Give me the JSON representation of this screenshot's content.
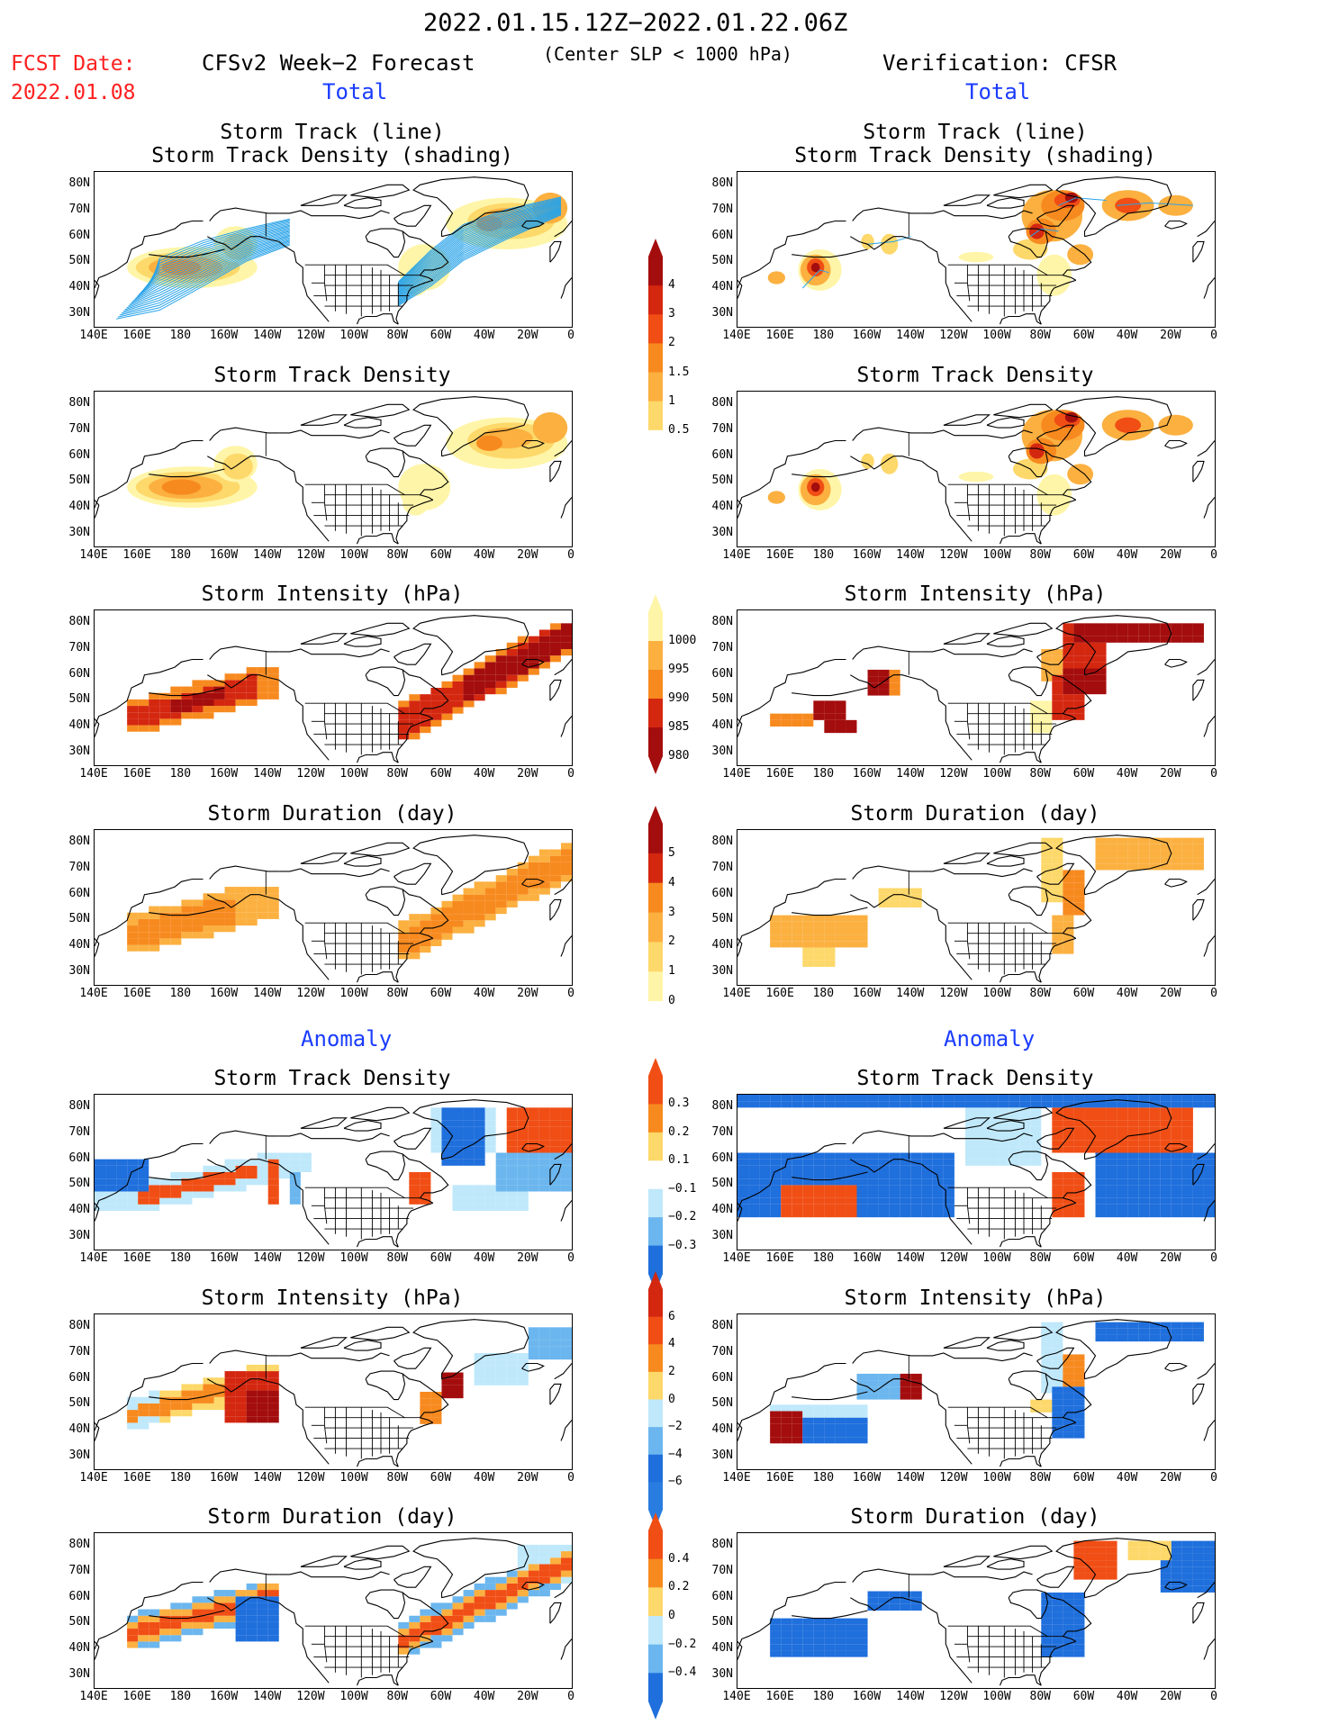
{
  "header": {
    "title": "2022.01.15.12Z−2022.01.22.06Z",
    "subtitle": "(Center SLP < 1000 hPa)",
    "fcst_label": "FCST Date:",
    "fcst_date": "2022.01.08",
    "left_title": "CFSv2 Week−2 Forecast",
    "right_title": "Verification: CFSR"
  },
  "sections": {
    "total": "Total",
    "anomaly": "Anomaly"
  },
  "panel_titles": {
    "track_line": "Storm Track (line)",
    "track_shading": "Storm Track Density (shading)",
    "density": "Storm Track Density",
    "intensity": "Storm Intensity (hPa)",
    "duration": "Storm Duration (day)"
  },
  "axes": {
    "lat": [
      "80N",
      "70N",
      "60N",
      "50N",
      "40N",
      "30N"
    ],
    "lon": [
      "140E",
      "160E",
      "180",
      "160W",
      "140W",
      "120W",
      "100W",
      "80W",
      "60W",
      "40W",
      "20W",
      "0"
    ]
  },
  "colorbars": {
    "total_density": [
      "4",
      "3",
      "2",
      "1.5",
      "1",
      "0.5"
    ],
    "total_intensity": [
      "1000",
      "995",
      "990",
      "985",
      "980"
    ],
    "total_duration": [
      "5",
      "4",
      "3",
      "2",
      "1",
      "0"
    ],
    "anom_density": [
      "0.3",
      "0.2",
      "0.1",
      "−0.1",
      "−0.2",
      "−0.3"
    ],
    "anom_intensity": [
      "6",
      "4",
      "2",
      "0",
      "−2",
      "−4",
      "−6"
    ],
    "anom_duration": [
      "0.4",
      "0.2",
      "0",
      "−0.2",
      "−0.4"
    ]
  },
  "colors": {
    "yellow_light": "#fff5a8",
    "yellow": "#fdd86a",
    "orange_light": "#fbb040",
    "orange": "#f78a1f",
    "red_orange": "#f04e15",
    "red": "#d42710",
    "dark_red": "#a40d0d",
    "light_blue": "#bfe8fb",
    "mid_blue": "#6bb6ee",
    "blue": "#1f6fdc",
    "track_line": "#29a3e8"
  }
}
